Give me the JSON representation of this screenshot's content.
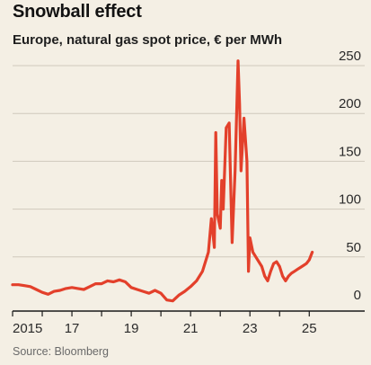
{
  "chart_data": {
    "type": "line",
    "title": "Snowball effect",
    "subtitle": "Europe, natural gas spot price, € per MWh",
    "source": "Source: Bloomberg",
    "xlabel": "",
    "ylabel": "",
    "xlim": [
      2015.0,
      2025.9
    ],
    "ylim": [
      0,
      260
    ],
    "y_ticks": [
      0,
      50,
      100,
      150,
      200,
      250
    ],
    "x_ticks": [
      {
        "value": 2015,
        "label": "2015"
      },
      {
        "value": 2017,
        "label": "17"
      },
      {
        "value": 2019,
        "label": "19"
      },
      {
        "value": 2021,
        "label": "21"
      },
      {
        "value": 2023,
        "label": "23"
      },
      {
        "value": 2025,
        "label": "25"
      }
    ],
    "grid": true,
    "colors": {
      "line": "#e3402b",
      "grid": "#cfc9bc",
      "axis": "#1a1a1a",
      "background": "#f4efe4"
    },
    "series": [
      {
        "x": [
          2015.0,
          2015.2,
          2015.4,
          2015.6,
          2015.8,
          2016.0,
          2016.2,
          2016.4,
          2016.6,
          2016.8,
          2017.0,
          2017.2,
          2017.4,
          2017.6,
          2017.8,
          2018.0,
          2018.2,
          2018.4,
          2018.6,
          2018.8,
          2019.0,
          2019.2,
          2019.4,
          2019.6,
          2019.8,
          2020.0,
          2020.2,
          2020.4,
          2020.6,
          2020.8,
          2021.0,
          2021.2,
          2021.4,
          2021.6,
          2021.7,
          2021.8,
          2021.85,
          2021.9,
          2022.0,
          2022.05,
          2022.1,
          2022.2,
          2022.3,
          2022.4,
          2022.5,
          2022.6,
          2022.65,
          2022.7,
          2022.8,
          2022.9,
          2022.95,
          2023.0,
          2023.1,
          2023.2,
          2023.3,
          2023.4,
          2023.5,
          2023.6,
          2023.7,
          2023.8,
          2023.9,
          2024.0,
          2024.1,
          2024.2,
          2024.3,
          2024.4,
          2024.5,
          2024.6,
          2024.7,
          2024.8,
          2024.9,
          2025.0,
          2025.1
        ],
        "y": [
          21,
          21,
          20,
          19,
          16,
          13,
          11,
          14,
          15,
          17,
          18,
          17,
          16,
          19,
          22,
          22,
          25,
          24,
          26,
          24,
          18,
          16,
          14,
          12,
          15,
          12,
          5,
          4,
          10,
          14,
          19,
          25,
          35,
          55,
          90,
          60,
          180,
          95,
          80,
          130,
          100,
          185,
          190,
          65,
          140,
          255,
          210,
          140,
          195,
          150,
          35,
          70,
          55,
          50,
          45,
          40,
          30,
          25,
          35,
          43,
          45,
          40,
          30,
          25,
          30,
          33,
          35,
          37,
          39,
          41,
          43,
          47,
          55
        ]
      }
    ]
  }
}
